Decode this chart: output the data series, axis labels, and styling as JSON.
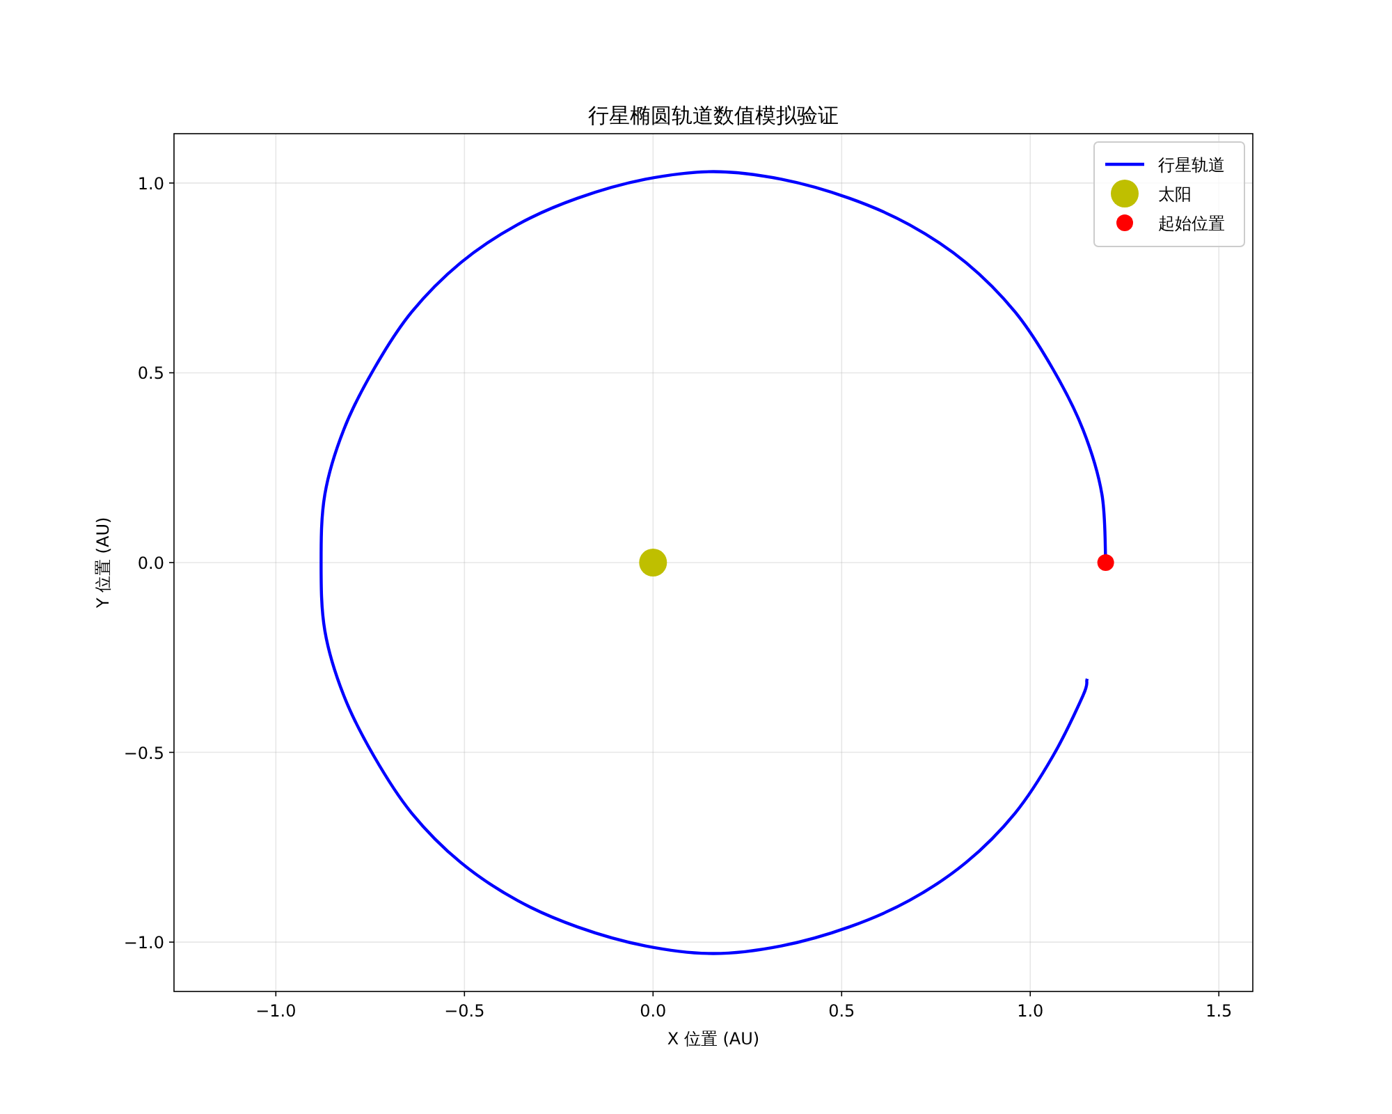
{
  "chart_data": {
    "type": "line",
    "title": "行星椭圆轨道数值模拟验证",
    "xlabel": "X 位置 (AU)",
    "ylabel": "Y 位置 (AU)",
    "xlim": [
      -1.27,
      1.59
    ],
    "ylim": [
      -1.13,
      1.13
    ],
    "xticks": [
      {
        "value": -1,
        "label": "−1.0"
      },
      {
        "value": -0.5,
        "label": "−0.5"
      },
      {
        "value": 0,
        "label": "0.0"
      },
      0.5,
      {
        "value": 1,
        "label": "1.0"
      },
      1.5
    ],
    "yticks": [
      {
        "value": -1,
        "label": "−1.0"
      },
      {
        "value": -0.5,
        "label": "−0.5"
      },
      {
        "value": 0,
        "label": "0.0"
      },
      0.5,
      {
        "value": 1,
        "label": "1.0"
      }
    ],
    "grid": true,
    "legend": "top right",
    "series": [
      {
        "name": "行星轨道",
        "color": "#0000ff",
        "x": [
          1.2,
          1.19,
          1.14,
          1.06,
          0.96,
          0.83,
          0.68,
          0.52,
          0.34,
          0.16,
          -0.02,
          -0.2,
          -0.36,
          -0.51,
          -0.64,
          -0.74,
          -0.82,
          -0.87,
          -0.88,
          -0.87,
          -0.82,
          -0.74,
          -0.64,
          -0.51,
          -0.36,
          -0.2,
          -0.02,
          0.16,
          0.34,
          0.52,
          0.68,
          0.83,
          0.96,
          1.06,
          1.14,
          1.15
        ],
        "values": [
          0,
          0.18,
          0.35,
          0.51,
          0.66,
          0.79,
          0.89,
          0.96,
          1.01,
          1.03,
          1.01,
          0.96,
          0.89,
          0.79,
          0.66,
          0.51,
          0.35,
          0.18,
          0,
          -0.18,
          -0.35,
          -0.51,
          -0.66,
          -0.79,
          -0.89,
          -0.96,
          -1.01,
          -1.03,
          -1.01,
          -0.96,
          -0.89,
          -0.79,
          -0.66,
          -0.51,
          -0.35,
          -0.31
        ]
      },
      {
        "name": "太阳",
        "type": "scatter",
        "color": "#bfbf00",
        "marker": "circle",
        "x": [
          0
        ],
        "values": [
          0
        ]
      },
      {
        "name": "起始位置",
        "type": "scatter",
        "color": "#ff0000",
        "marker": "circle",
        "x": [
          1.2
        ],
        "values": [
          0
        ]
      }
    ]
  }
}
